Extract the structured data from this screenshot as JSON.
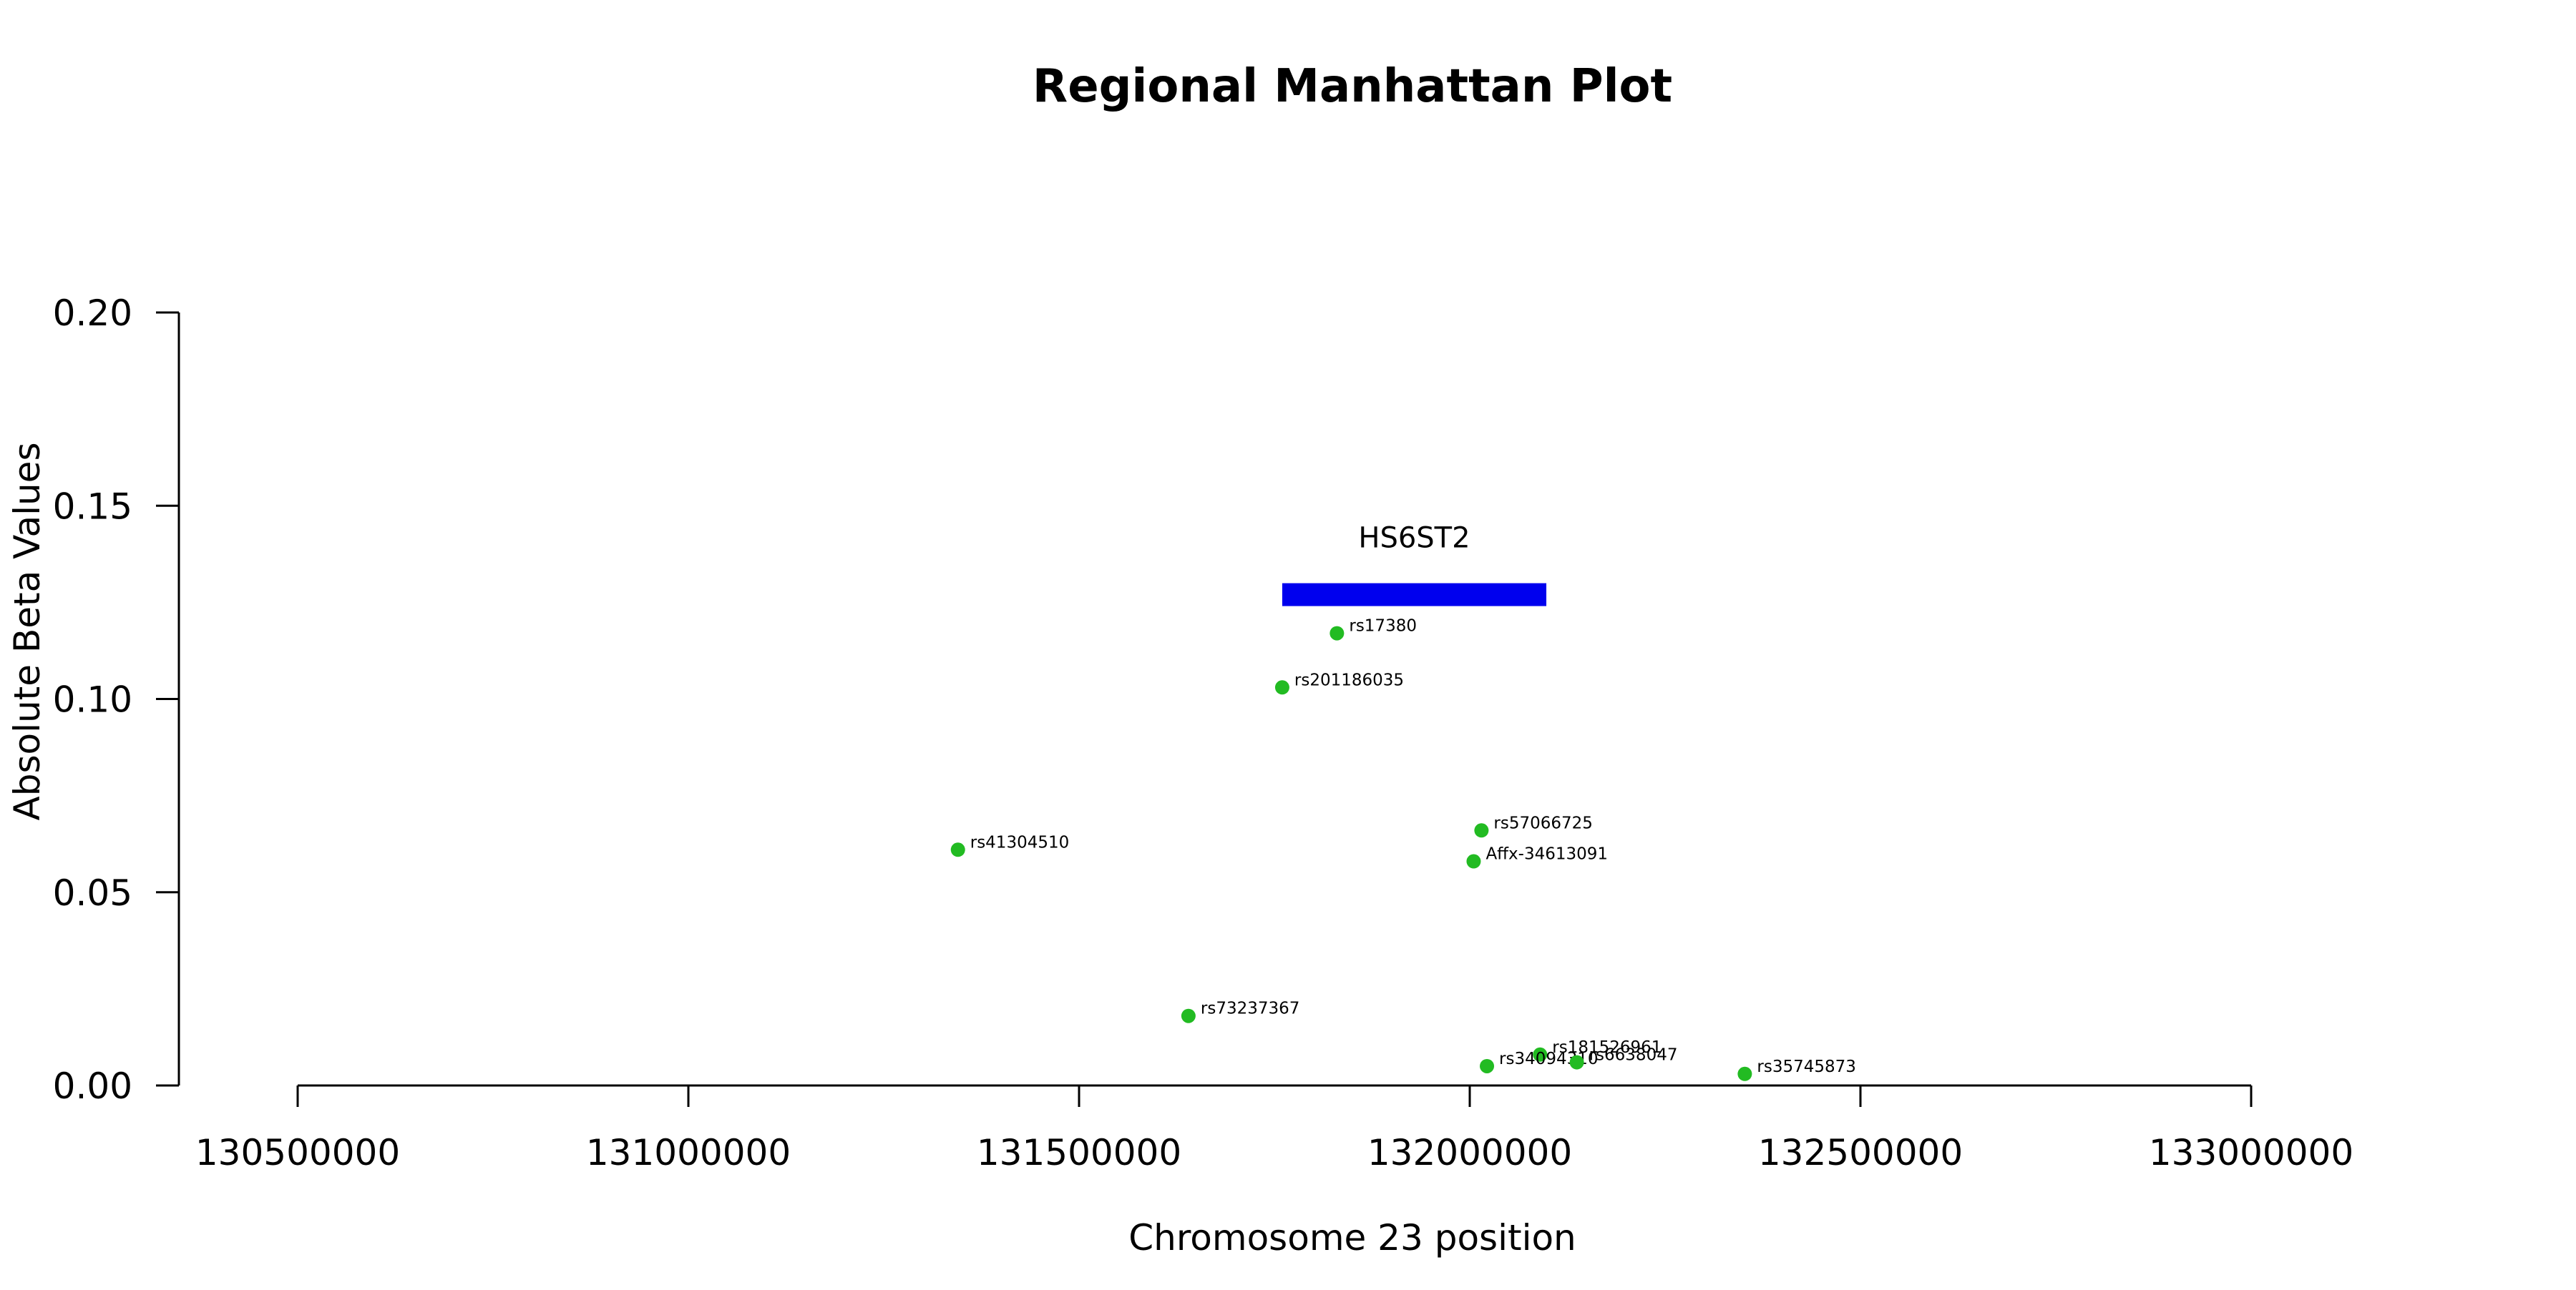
{
  "chart_data": {
    "type": "scatter",
    "title": "Regional Manhattan Plot",
    "xlabel": "Chromosome 23 position",
    "ylabel": "Absolute Beta Values",
    "xlim": [
      130500000,
      133000000
    ],
    "ylim": [
      0,
      0.2
    ],
    "x_ticks": [
      130500000,
      131000000,
      131500000,
      132000000,
      132500000,
      133000000
    ],
    "x_tick_labels": [
      "130500000",
      "131000000",
      "131500000",
      "132000000",
      "132500000",
      "133000000"
    ],
    "y_ticks": [
      0,
      0.05,
      0.1,
      0.15,
      0.2
    ],
    "y_tick_labels": [
      "0.00",
      "0.05",
      "0.10",
      "0.15",
      "0.20"
    ],
    "grid": false,
    "point_color": "#22BB22",
    "points": [
      {
        "label": "rs17380",
        "x": 131830000,
        "y": 0.117
      },
      {
        "label": "rs201186035",
        "x": 131760000,
        "y": 0.103
      },
      {
        "label": "rs41304510",
        "x": 131345000,
        "y": 0.061
      },
      {
        "label": "rs57066725",
        "x": 132015000,
        "y": 0.066
      },
      {
        "label": "Affx-34613091",
        "x": 132005000,
        "y": 0.058
      },
      {
        "label": "rs73237367",
        "x": 131640000,
        "y": 0.018
      },
      {
        "label": "rs181526961",
        "x": 132090000,
        "y": 0.008
      },
      {
        "label": "rs34094310",
        "x": 132022000,
        "y": 0.005
      },
      {
        "label": "rs6638047",
        "x": 132137000,
        "y": 0.006
      },
      {
        "label": "rs35745873",
        "x": 132352000,
        "y": 0.003
      }
    ],
    "genes": [
      {
        "name": "HS6ST2",
        "start": 131760000,
        "end": 132098000,
        "y": 0.127,
        "color": "#0000EE"
      }
    ]
  }
}
